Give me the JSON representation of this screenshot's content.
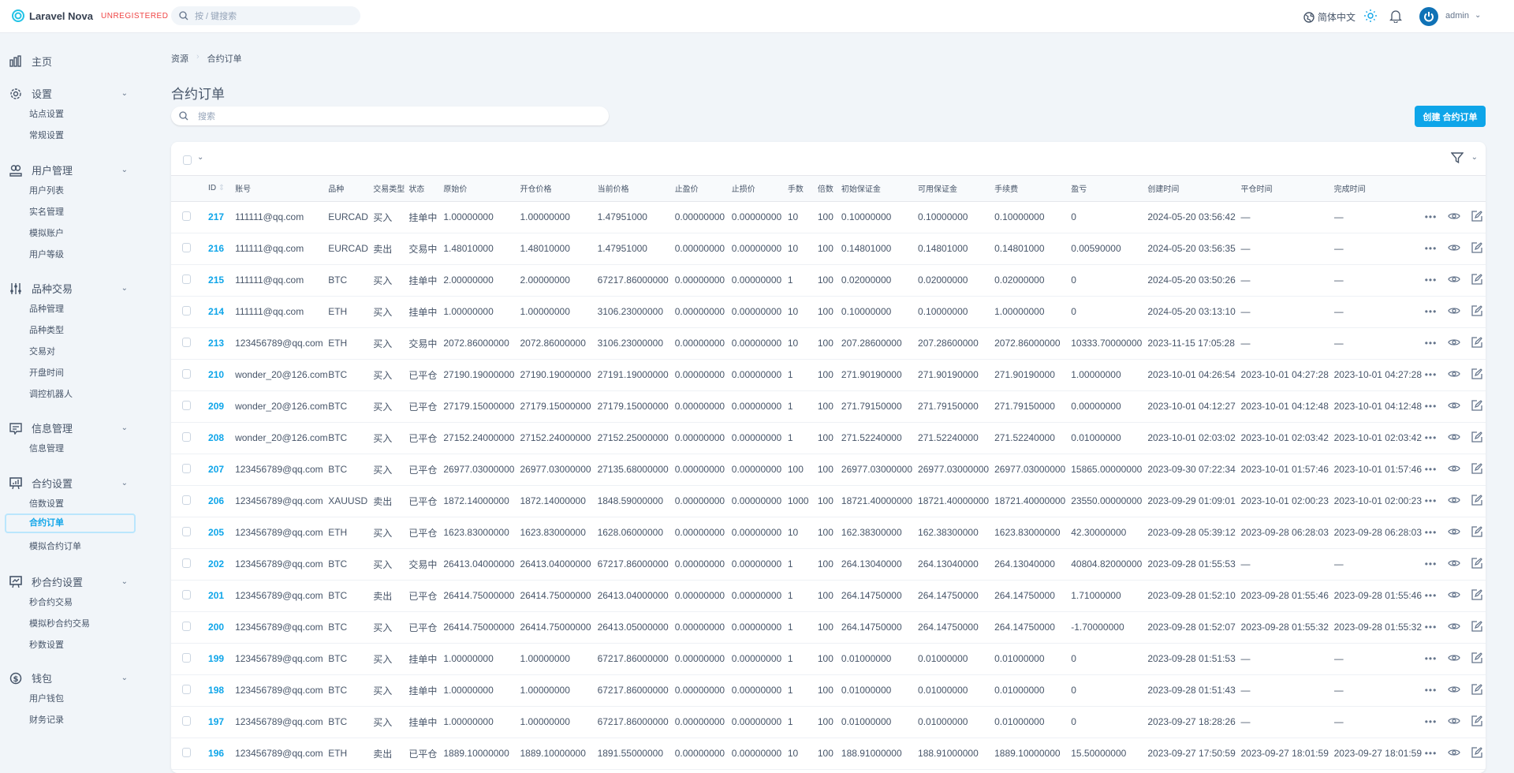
{
  "app": {
    "name": "Laravel Nova",
    "badge": "UNREGISTERED",
    "search_placeholder": "按 / 键搜索",
    "language": "简体中文",
    "user": "admin",
    "accent": "#0ea5e9"
  },
  "sidebar": [
    {
      "label": "主页",
      "icon": "dashboard-icon",
      "items": []
    },
    {
      "label": "设置",
      "icon": "gear-icon",
      "items": [
        "站点设置",
        "常规设置"
      ]
    },
    {
      "label": "用户管理",
      "icon": "users-icon",
      "items": [
        "用户列表",
        "实名管理",
        "模拟账户",
        "用户等级"
      ]
    },
    {
      "label": "品种交易",
      "icon": "sliders-icon",
      "items": [
        "品种管理",
        "品种类型",
        "交易对",
        "开盘时间",
        "调控机器人"
      ]
    },
    {
      "label": "信息管理",
      "icon": "message-icon",
      "items": [
        "信息管理"
      ]
    },
    {
      "label": "合约设置",
      "icon": "presentation-chart-icon",
      "items": [
        "倍数设置",
        "合约订单",
        "模拟合约订单"
      ]
    },
    {
      "label": "秒合约设置",
      "icon": "presentation-trend-icon",
      "items": [
        "秒合约交易",
        "模拟秒合约交易",
        "秒数设置"
      ]
    },
    {
      "label": "钱包",
      "icon": "dollar-icon",
      "items": [
        "用户钱包",
        "财务记录"
      ]
    }
  ],
  "active_item": "合约订单",
  "breadcrumb": [
    "资源",
    "合约订单"
  ],
  "page": {
    "title": "合约订单",
    "search_placeholder": "搜索",
    "create_label": "创建 合约订单"
  },
  "table": {
    "columns": [
      "ID",
      "账号",
      "品种",
      "交易类型",
      "状态",
      "原始价",
      "开仓价格",
      "当前价格",
      "止盈价",
      "止损价",
      "手数",
      "倍数",
      "初始保证金",
      "可用保证金",
      "手续费",
      "盈亏",
      "创建时间",
      "平仓时间",
      "完成时间"
    ],
    "rows": [
      [
        "217",
        "111111@qq.com",
        "EURCAD",
        "买入",
        "挂单中",
        "1.00000000",
        "1.00000000",
        "1.47951000",
        "0.00000000",
        "0.00000000",
        "10",
        "100",
        "0.10000000",
        "0.10000000",
        "0.10000000",
        "0",
        "2024-05-20 03:56:42",
        "—",
        "—"
      ],
      [
        "216",
        "111111@qq.com",
        "EURCAD",
        "卖出",
        "交易中",
        "1.48010000",
        "1.48010000",
        "1.47951000",
        "0.00000000",
        "0.00000000",
        "10",
        "100",
        "0.14801000",
        "0.14801000",
        "0.14801000",
        "0.00590000",
        "2024-05-20 03:56:35",
        "—",
        "—"
      ],
      [
        "215",
        "111111@qq.com",
        "BTC",
        "买入",
        "挂单中",
        "2.00000000",
        "2.00000000",
        "67217.86000000",
        "0.00000000",
        "0.00000000",
        "1",
        "100",
        "0.02000000",
        "0.02000000",
        "0.02000000",
        "0",
        "2024-05-20 03:50:26",
        "—",
        "—"
      ],
      [
        "214",
        "111111@qq.com",
        "ETH",
        "买入",
        "挂单中",
        "1.00000000",
        "1.00000000",
        "3106.23000000",
        "0.00000000",
        "0.00000000",
        "10",
        "100",
        "0.10000000",
        "0.10000000",
        "1.00000000",
        "0",
        "2024-05-20 03:13:10",
        "—",
        "—"
      ],
      [
        "213",
        "123456789@qq.com",
        "ETH",
        "买入",
        "交易中",
        "2072.86000000",
        "2072.86000000",
        "3106.23000000",
        "0.00000000",
        "0.00000000",
        "10",
        "100",
        "207.28600000",
        "207.28600000",
        "2072.86000000",
        "10333.70000000",
        "2023-11-15 17:05:28",
        "—",
        "—"
      ],
      [
        "210",
        "wonder_20@126.com",
        "BTC",
        "买入",
        "已平仓",
        "27190.19000000",
        "27190.19000000",
        "27191.19000000",
        "0.00000000",
        "0.00000000",
        "1",
        "100",
        "271.90190000",
        "271.90190000",
        "271.90190000",
        "1.00000000",
        "2023-10-01 04:26:54",
        "2023-10-01 04:27:28",
        "2023-10-01 04:27:28"
      ],
      [
        "209",
        "wonder_20@126.com",
        "BTC",
        "买入",
        "已平仓",
        "27179.15000000",
        "27179.15000000",
        "27179.15000000",
        "0.00000000",
        "0.00000000",
        "1",
        "100",
        "271.79150000",
        "271.79150000",
        "271.79150000",
        "0.00000000",
        "2023-10-01 04:12:27",
        "2023-10-01 04:12:48",
        "2023-10-01 04:12:48"
      ],
      [
        "208",
        "wonder_20@126.com",
        "BTC",
        "买入",
        "已平仓",
        "27152.24000000",
        "27152.24000000",
        "27152.25000000",
        "0.00000000",
        "0.00000000",
        "1",
        "100",
        "271.52240000",
        "271.52240000",
        "271.52240000",
        "0.01000000",
        "2023-10-01 02:03:02",
        "2023-10-01 02:03:42",
        "2023-10-01 02:03:42"
      ],
      [
        "207",
        "123456789@qq.com",
        "BTC",
        "买入",
        "已平仓",
        "26977.03000000",
        "26977.03000000",
        "27135.68000000",
        "0.00000000",
        "0.00000000",
        "100",
        "100",
        "26977.03000000",
        "26977.03000000",
        "26977.03000000",
        "15865.00000000",
        "2023-09-30 07:22:34",
        "2023-10-01 01:57:46",
        "2023-10-01 01:57:46"
      ],
      [
        "206",
        "123456789@qq.com",
        "XAUUSD",
        "卖出",
        "已平仓",
        "1872.14000000",
        "1872.14000000",
        "1848.59000000",
        "0.00000000",
        "0.00000000",
        "1000",
        "100",
        "18721.40000000",
        "18721.40000000",
        "18721.40000000",
        "23550.00000000",
        "2023-09-29 01:09:01",
        "2023-10-01 02:00:23",
        "2023-10-01 02:00:23"
      ],
      [
        "205",
        "123456789@qq.com",
        "ETH",
        "买入",
        "已平仓",
        "1623.83000000",
        "1623.83000000",
        "1628.06000000",
        "0.00000000",
        "0.00000000",
        "10",
        "100",
        "162.38300000",
        "162.38300000",
        "1623.83000000",
        "42.30000000",
        "2023-09-28 05:39:12",
        "2023-09-28 06:28:03",
        "2023-09-28 06:28:03"
      ],
      [
        "202",
        "123456789@qq.com",
        "BTC",
        "买入",
        "交易中",
        "26413.04000000",
        "26413.04000000",
        "67217.86000000",
        "0.00000000",
        "0.00000000",
        "1",
        "100",
        "264.13040000",
        "264.13040000",
        "264.13040000",
        "40804.82000000",
        "2023-09-28 01:55:53",
        "—",
        "—"
      ],
      [
        "201",
        "123456789@qq.com",
        "BTC",
        "卖出",
        "已平仓",
        "26414.75000000",
        "26414.75000000",
        "26413.04000000",
        "0.00000000",
        "0.00000000",
        "1",
        "100",
        "264.14750000",
        "264.14750000",
        "264.14750000",
        "1.71000000",
        "2023-09-28 01:52:10",
        "2023-09-28 01:55:46",
        "2023-09-28 01:55:46"
      ],
      [
        "200",
        "123456789@qq.com",
        "BTC",
        "买入",
        "已平仓",
        "26414.75000000",
        "26414.75000000",
        "26413.05000000",
        "0.00000000",
        "0.00000000",
        "1",
        "100",
        "264.14750000",
        "264.14750000",
        "264.14750000",
        "-1.70000000",
        "2023-09-28 01:52:07",
        "2023-09-28 01:55:32",
        "2023-09-28 01:55:32"
      ],
      [
        "199",
        "123456789@qq.com",
        "BTC",
        "买入",
        "挂单中",
        "1.00000000",
        "1.00000000",
        "67217.86000000",
        "0.00000000",
        "0.00000000",
        "1",
        "100",
        "0.01000000",
        "0.01000000",
        "0.01000000",
        "0",
        "2023-09-28 01:51:53",
        "—",
        "—"
      ],
      [
        "198",
        "123456789@qq.com",
        "BTC",
        "买入",
        "挂单中",
        "1.00000000",
        "1.00000000",
        "67217.86000000",
        "0.00000000",
        "0.00000000",
        "1",
        "100",
        "0.01000000",
        "0.01000000",
        "0.01000000",
        "0",
        "2023-09-28 01:51:43",
        "—",
        "—"
      ],
      [
        "197",
        "123456789@qq.com",
        "BTC",
        "买入",
        "挂单中",
        "1.00000000",
        "1.00000000",
        "67217.86000000",
        "0.00000000",
        "0.00000000",
        "1",
        "100",
        "0.01000000",
        "0.01000000",
        "0.01000000",
        "0",
        "2023-09-27 18:28:26",
        "—",
        "—"
      ],
      [
        "196",
        "123456789@qq.com",
        "ETH",
        "卖出",
        "已平仓",
        "1889.10000000",
        "1889.10000000",
        "1891.55000000",
        "0.00000000",
        "0.00000000",
        "10",
        "100",
        "188.91000000",
        "188.91000000",
        "1889.10000000",
        "15.50000000",
        "2023-09-27 17:50:59",
        "2023-09-27 18:01:59",
        "2023-09-27 18:01:59"
      ]
    ]
  }
}
